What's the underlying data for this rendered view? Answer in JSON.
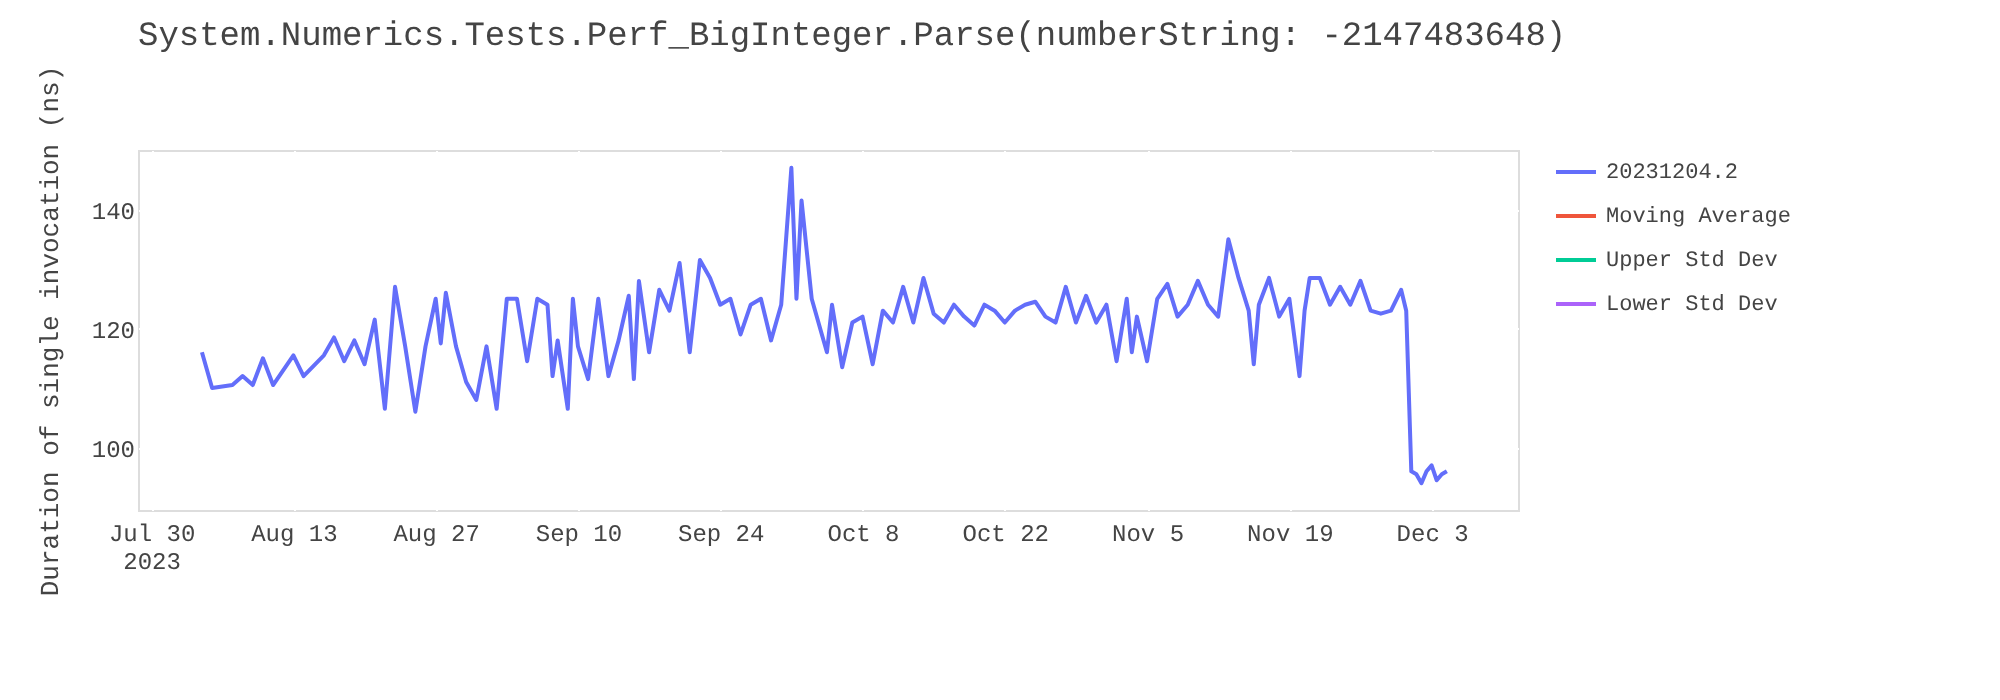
{
  "chart_data": {
    "type": "line",
    "title": "System.Numerics.Tests.Perf_BigInteger.Parse(numberString: -2147483648)",
    "ylabel": "Duration of single invocation (ns)",
    "x": [
      "2023-08-04T00:00",
      "2023-08-05T00:00",
      "2023-08-07T00:00",
      "2023-08-08T00:00",
      "2023-08-09T00:00",
      "2023-08-10T00:00",
      "2023-08-11T00:00",
      "2023-08-13T00:00",
      "2023-08-14T00:00",
      "2023-08-16T00:00",
      "2023-08-17T00:00",
      "2023-08-18T00:00",
      "2023-08-19T00:00",
      "2023-08-20T00:00",
      "2023-08-21T00:00",
      "2023-08-22T00:00",
      "2023-08-23T00:00",
      "2023-08-24T00:00",
      "2023-08-25T00:00",
      "2023-08-26T00:00",
      "2023-08-27T00:00",
      "2023-08-27T12:00",
      "2023-08-28T00:00",
      "2023-08-29T00:00",
      "2023-08-30T00:00",
      "2023-08-31T00:00",
      "2023-09-01T00:00",
      "2023-09-02T00:00",
      "2023-09-03T00:00",
      "2023-09-04T00:00",
      "2023-09-05T00:00",
      "2023-09-06T00:00",
      "2023-09-07T00:00",
      "2023-09-07T12:00",
      "2023-09-08T00:00",
      "2023-09-09T00:00",
      "2023-09-09T12:00",
      "2023-09-10T00:00",
      "2023-09-11T00:00",
      "2023-09-12T00:00",
      "2023-09-13T00:00",
      "2023-09-14T00:00",
      "2023-09-15T00:00",
      "2023-09-15T12:00",
      "2023-09-16T00:00",
      "2023-09-17T00:00",
      "2023-09-18T00:00",
      "2023-09-19T00:00",
      "2023-09-20T00:00",
      "2023-09-21T00:00",
      "2023-09-22T00:00",
      "2023-09-23T00:00",
      "2023-09-24T00:00",
      "2023-09-25T00:00",
      "2023-09-26T00:00",
      "2023-09-27T00:00",
      "2023-09-28T00:00",
      "2023-09-29T00:00",
      "2023-09-30T00:00",
      "2023-10-01T00:00",
      "2023-10-01T12:00",
      "2023-10-02T00:00",
      "2023-10-03T00:00",
      "2023-10-04T00:00",
      "2023-10-04T12:00",
      "2023-10-05T00:00",
      "2023-10-06T00:00",
      "2023-10-07T00:00",
      "2023-10-08T00:00",
      "2023-10-09T00:00",
      "2023-10-10T00:00",
      "2023-10-11T00:00",
      "2023-10-12T00:00",
      "2023-10-13T00:00",
      "2023-10-14T00:00",
      "2023-10-15T00:00",
      "2023-10-16T00:00",
      "2023-10-17T00:00",
      "2023-10-18T00:00",
      "2023-10-19T00:00",
      "2023-10-20T00:00",
      "2023-10-21T00:00",
      "2023-10-22T00:00",
      "2023-10-23T00:00",
      "2023-10-24T00:00",
      "2023-10-25T00:00",
      "2023-10-26T00:00",
      "2023-10-27T00:00",
      "2023-10-28T00:00",
      "2023-10-29T00:00",
      "2023-10-30T00:00",
      "2023-10-31T00:00",
      "2023-11-01T00:00",
      "2023-11-02T00:00",
      "2023-11-03T00:00",
      "2023-11-03T12:00",
      "2023-11-04T00:00",
      "2023-11-05T00:00",
      "2023-11-06T00:00",
      "2023-11-07T00:00",
      "2023-11-08T00:00",
      "2023-11-09T00:00",
      "2023-11-10T00:00",
      "2023-11-11T00:00",
      "2023-11-12T00:00",
      "2023-11-13T00:00",
      "2023-11-14T00:00",
      "2023-11-15T00:00",
      "2023-11-15T12:00",
      "2023-11-16T00:00",
      "2023-11-17T00:00",
      "2023-11-18T00:00",
      "2023-11-19T00:00",
      "2023-11-20T00:00",
      "2023-11-20T12:00",
      "2023-11-21T00:00",
      "2023-11-22T00:00",
      "2023-11-23T00:00",
      "2023-11-24T00:00",
      "2023-11-25T00:00",
      "2023-11-26T00:00",
      "2023-11-27T00:00",
      "2023-11-28T00:00",
      "2023-11-29T00:00",
      "2023-11-30T00:00",
      "2023-11-30T12:00",
      "2023-12-01T00:00",
      "2023-12-01T12:00",
      "2023-12-02T00:00",
      "2023-12-02T12:00",
      "2023-12-03T00:00",
      "2023-12-03T12:00",
      "2023-12-04T00:00",
      "2023-12-04T12:00"
    ],
    "series": [
      {
        "name": "20231204.2",
        "color": "#636efa",
        "values": [
          116,
          110,
          110.5,
          112,
          110.5,
          115,
          110.5,
          115.5,
          112,
          115.5,
          118.5,
          114.5,
          118,
          114,
          121.5,
          106.5,
          127,
          117,
          106,
          117,
          125,
          117.5,
          126,
          117,
          111,
          108,
          117,
          106.5,
          125,
          125,
          114.5,
          125,
          124,
          112,
          118,
          106.5,
          125,
          117,
          111.5,
          125,
          112,
          118,
          125.5,
          111.5,
          128,
          116,
          126.5,
          123,
          131,
          116,
          131.5,
          128.5,
          124,
          125,
          119,
          124,
          125,
          118,
          124,
          147,
          125,
          141.5,
          125,
          119,
          116,
          124,
          113.5,
          121,
          122,
          114,
          123,
          121,
          127,
          121,
          128.5,
          122.5,
          121,
          124,
          122,
          120.5,
          124,
          123,
          121,
          123,
          124,
          124.5,
          122,
          121,
          127,
          121,
          125.5,
          121,
          124,
          114.5,
          125,
          116,
          122,
          114.5,
          125,
          127.5,
          122,
          124,
          128,
          124,
          122,
          135,
          128.5,
          123,
          114,
          124,
          128.5,
          122,
          125,
          112,
          123,
          128.5,
          128.5,
          124,
          127,
          124,
          128,
          123,
          122.5,
          123,
          126.5,
          123,
          96,
          95.5,
          94,
          96,
          97,
          94.5,
          95.5,
          96
        ]
      },
      {
        "name": "Moving Average",
        "color": "#ef553b",
        "values": [
          null,
          null,
          null,
          null,
          null,
          null,
          null,
          null,
          null,
          null,
          null,
          null,
          null,
          null,
          null,
          null,
          null,
          null,
          null,
          null,
          null,
          null,
          null,
          null,
          null,
          null,
          null,
          null,
          null,
          null,
          null,
          null,
          null,
          null,
          null,
          null,
          null,
          null,
          null,
          null,
          null,
          null,
          null,
          null,
          null,
          null,
          null,
          null,
          null,
          null,
          null,
          null,
          null,
          null,
          null,
          null,
          null,
          null,
          null,
          null,
          null,
          null,
          null,
          null,
          null,
          null,
          null,
          null,
          null,
          null,
          null,
          null,
          null,
          null,
          null,
          null,
          null,
          null,
          null,
          null,
          null,
          null,
          null,
          null,
          null,
          null,
          null,
          null,
          null,
          null,
          null,
          null,
          null,
          null,
          null,
          null,
          null,
          null,
          null,
          null,
          null,
          null,
          null,
          null,
          null,
          null,
          null,
          null,
          null,
          null,
          null,
          null,
          null,
          null,
          null,
          null,
          null,
          null,
          null,
          null,
          null,
          null,
          null,
          null,
          null,
          null,
          null,
          null,
          null,
          null,
          null,
          null,
          null,
          null
        ]
      },
      {
        "name": "Upper Std Dev",
        "color": "#00cc96",
        "values": [
          null,
          null,
          null,
          null,
          null,
          null,
          null,
          null,
          null,
          null,
          null,
          null,
          null,
          null,
          null,
          null,
          null,
          null,
          null,
          null,
          null,
          null,
          null,
          null,
          null,
          null,
          null,
          null,
          null,
          null,
          null,
          null,
          null,
          null,
          null,
          null,
          null,
          null,
          null,
          null,
          null,
          null,
          null,
          null,
          null,
          null,
          null,
          null,
          null,
          null,
          null,
          null,
          null,
          null,
          null,
          null,
          null,
          null,
          null,
          null,
          null,
          null,
          null,
          null,
          null,
          null,
          null,
          null,
          null,
          null,
          null,
          null,
          null,
          null,
          null,
          null,
          null,
          null,
          null,
          null,
          null,
          null,
          null,
          null,
          null,
          null,
          null,
          null,
          null,
          null,
          null,
          null,
          null,
          null,
          null,
          null,
          null,
          null,
          null,
          null,
          null,
          null,
          null,
          null,
          null,
          null,
          null,
          null,
          null,
          null,
          null,
          null,
          null,
          null,
          null,
          null,
          null,
          null,
          null,
          null,
          null,
          null,
          null,
          null,
          null,
          null,
          null,
          null,
          null,
          null,
          null,
          null,
          null,
          null
        ]
      },
      {
        "name": "Lower Std Dev",
        "color": "#ab63fa",
        "values": [
          null,
          null,
          null,
          null,
          null,
          null,
          null,
          null,
          null,
          null,
          null,
          null,
          null,
          null,
          null,
          null,
          null,
          null,
          null,
          null,
          null,
          null,
          null,
          null,
          null,
          null,
          null,
          null,
          null,
          null,
          null,
          null,
          null,
          null,
          null,
          null,
          null,
          null,
          null,
          null,
          null,
          null,
          null,
          null,
          null,
          null,
          null,
          null,
          null,
          null,
          null,
          null,
          null,
          null,
          null,
          null,
          null,
          null,
          null,
          null,
          null,
          null,
          null,
          null,
          null,
          null,
          null,
          null,
          null,
          null,
          null,
          null,
          null,
          null,
          null,
          null,
          null,
          null,
          null,
          null,
          null,
          null,
          null,
          null,
          null,
          null,
          null,
          null,
          null,
          null,
          null,
          null,
          null,
          null,
          null,
          null,
          null,
          null,
          null,
          null,
          null,
          null,
          null,
          null,
          null,
          null,
          null,
          null,
          null,
          null,
          null,
          null,
          null,
          null,
          null,
          null,
          null,
          null,
          null,
          null,
          null,
          null,
          null,
          null,
          null,
          null,
          null,
          null,
          null,
          null,
          null,
          null,
          null,
          null
        ]
      }
    ],
    "xlim": [
      "2023-07-28T17:00",
      "2023-12-11T12:00"
    ],
    "xticks": [
      {
        "value": "2023-07-30T00:00",
        "label": "Jul 30\n2023"
      },
      {
        "value": "2023-08-13T00:00",
        "label": "Aug 13"
      },
      {
        "value": "2023-08-27T00:00",
        "label": "Aug 27"
      },
      {
        "value": "2023-09-10T00:00",
        "label": "Sep 10"
      },
      {
        "value": "2023-09-24T00:00",
        "label": "Sep 24"
      },
      {
        "value": "2023-10-08T00:00",
        "label": "Oct 8"
      },
      {
        "value": "2023-10-22T00:00",
        "label": "Oct 22"
      },
      {
        "value": "2023-11-05T00:00",
        "label": "Nov 5"
      },
      {
        "value": "2023-11-19T00:00",
        "label": "Nov 19"
      },
      {
        "value": "2023-12-03T00:00",
        "label": "Dec 3"
      }
    ],
    "ylim": [
      89.5,
      150
    ],
    "yticks": [
      100,
      120,
      140
    ],
    "grid": true,
    "legend": "top right",
    "line_style": "solid"
  }
}
